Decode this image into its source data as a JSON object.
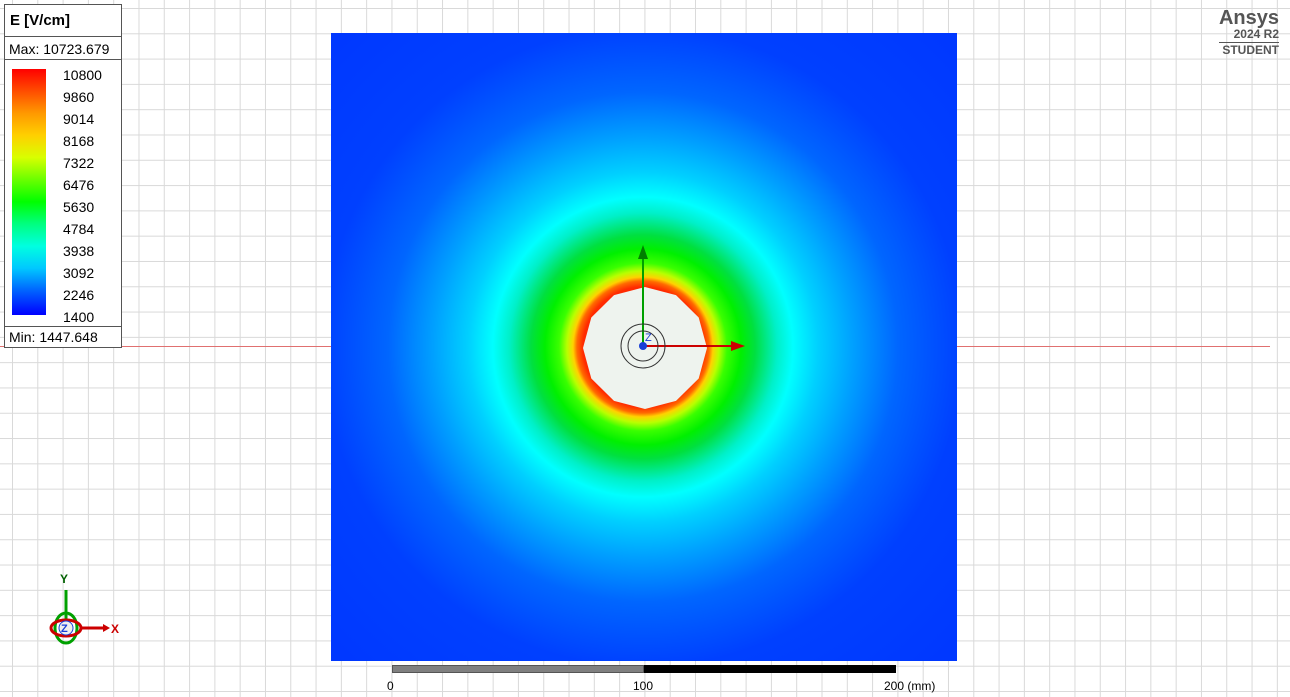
{
  "legend": {
    "title": "E [V/cm]",
    "max_label": "Max: 10723.679",
    "min_label": "Min:  1447.648",
    "ticks": [
      "10800",
      "9860",
      "9014",
      "8168",
      "7322",
      "6476",
      "5630",
      "4784",
      "3938",
      "3092",
      "2246",
      "1400"
    ]
  },
  "brand": {
    "name": "Ansys",
    "version": "2024 R2",
    "edition": "STUDENT"
  },
  "scale": {
    "label_0": "0",
    "label_100": "100",
    "label_200": "200 (mm)"
  },
  "triad": {
    "y_label": "Y",
    "x_label": "X",
    "z_label": "Z"
  },
  "colors": {
    "field_max": "#ff0000",
    "field_min": "#0000ff",
    "x_axis": "#cc0000",
    "y_axis": "#00a000",
    "z_axis": "#0000cc"
  }
}
